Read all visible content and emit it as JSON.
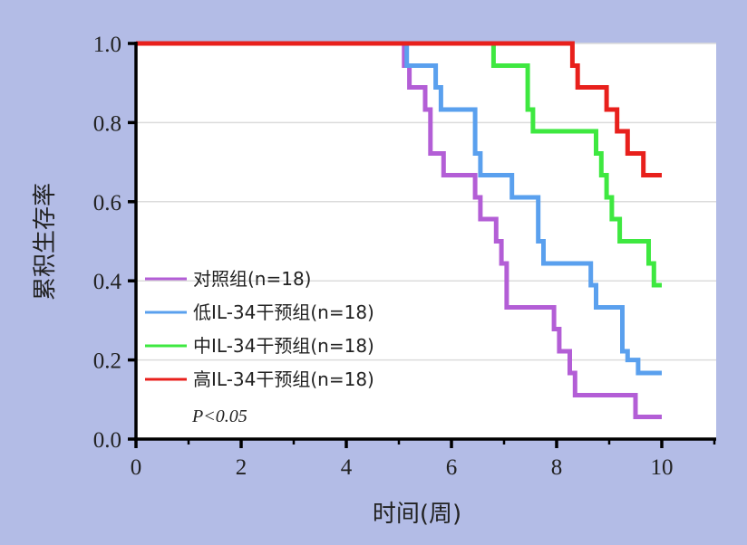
{
  "chart_data": {
    "type": "line",
    "step": true,
    "xlabel": "时间(周)",
    "ylabel": "累积生存率",
    "xlim": [
      0,
      11
    ],
    "ylim": [
      0,
      1.0
    ],
    "x_ticks": [
      "0",
      "2",
      "4",
      "6",
      "8",
      "10"
    ],
    "y_ticks": [
      "0.0",
      "0.2",
      "0.4",
      "0.6",
      "0.8",
      "1.0"
    ],
    "grid": "horizontal",
    "legend_position": "bottom-left",
    "colors": {
      "background": "#b3bce6",
      "plot_area": "#ffffff",
      "grid": "#dcdcdc"
    },
    "series": [
      {
        "name": "对照组(n=18)",
        "color": "#b35ed6",
        "x": [
          0,
          5.1,
          5.1,
          5.2,
          5.2,
          5.5,
          5.5,
          5.6,
          5.6,
          5.85,
          5.85,
          6.45,
          6.45,
          6.55,
          6.55,
          6.85,
          6.85,
          6.95,
          6.95,
          7.05,
          7.05,
          7.95,
          7.95,
          8.05,
          8.05,
          8.25,
          8.25,
          8.35,
          8.35,
          9.5,
          9.5,
          10
        ],
        "y": [
          1.0,
          1.0,
          0.944,
          0.944,
          0.889,
          0.889,
          0.833,
          0.833,
          0.722,
          0.722,
          0.667,
          0.667,
          0.611,
          0.611,
          0.556,
          0.556,
          0.5,
          0.5,
          0.444,
          0.444,
          0.333,
          0.333,
          0.278,
          0.278,
          0.222,
          0.222,
          0.167,
          0.167,
          0.111,
          0.111,
          0.056,
          0.056
        ]
      },
      {
        "name": "低IL-34干预组(n=18)",
        "color": "#5aa0ee",
        "x": [
          0,
          5.15,
          5.15,
          5.7,
          5.7,
          5.8,
          5.8,
          6.45,
          6.45,
          6.55,
          6.55,
          7.15,
          7.15,
          7.65,
          7.65,
          7.75,
          7.75,
          8.65,
          8.65,
          8.75,
          8.75,
          9.25,
          9.25,
          9.35,
          9.35,
          9.55,
          9.55,
          10
        ],
        "y": [
          1.0,
          1.0,
          0.944,
          0.944,
          0.889,
          0.889,
          0.833,
          0.833,
          0.722,
          0.722,
          0.667,
          0.667,
          0.611,
          0.611,
          0.5,
          0.5,
          0.444,
          0.444,
          0.389,
          0.389,
          0.333,
          0.333,
          0.222,
          0.222,
          0.2,
          0.2,
          0.167,
          0.167
        ]
      },
      {
        "name": "中IL-34干预组(n=18)",
        "color": "#3ee840",
        "x": [
          0,
          6.8,
          6.8,
          7.45,
          7.45,
          7.55,
          7.55,
          8.75,
          8.75,
          8.85,
          8.85,
          8.95,
          8.95,
          9.05,
          9.05,
          9.2,
          9.2,
          9.75,
          9.75,
          9.85,
          9.85,
          10
        ],
        "y": [
          1.0,
          1.0,
          0.944,
          0.944,
          0.833,
          0.833,
          0.778,
          0.778,
          0.722,
          0.722,
          0.667,
          0.667,
          0.611,
          0.611,
          0.556,
          0.556,
          0.5,
          0.5,
          0.444,
          0.444,
          0.389,
          0.389
        ]
      },
      {
        "name": "高IL-34干预组(n=18)",
        "color": "#e8201c",
        "x": [
          0,
          8.3,
          8.3,
          8.4,
          8.4,
          8.95,
          8.95,
          9.15,
          9.15,
          9.35,
          9.35,
          9.65,
          9.65,
          10
        ],
        "y": [
          1.0,
          1.0,
          0.944,
          0.944,
          0.889,
          0.889,
          0.833,
          0.833,
          0.778,
          0.778,
          0.722,
          0.722,
          0.667,
          0.667
        ]
      }
    ],
    "annotation": "P<0.05"
  }
}
